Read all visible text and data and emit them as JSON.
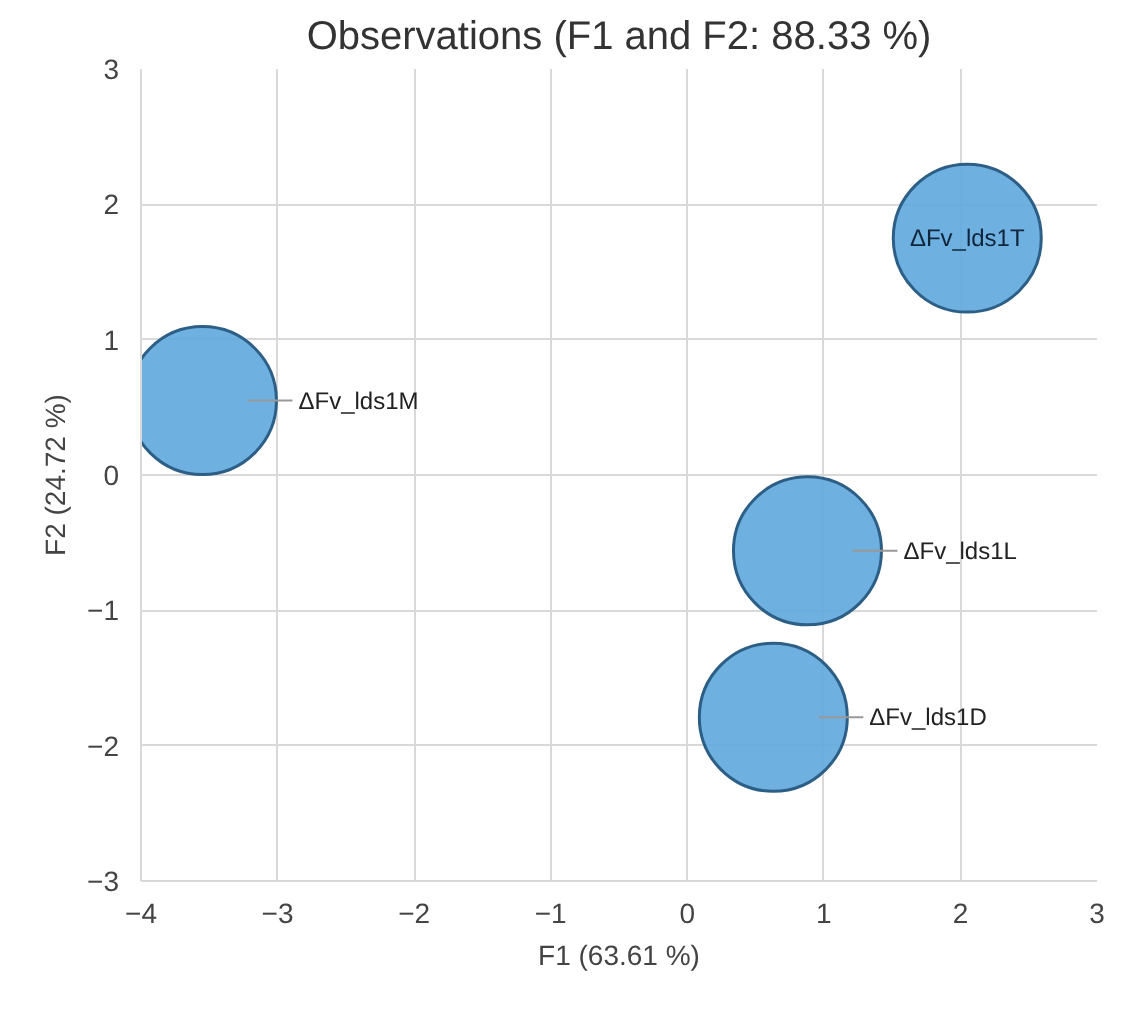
{
  "chart_data": {
    "type": "bubble",
    "title": "Observations (F1 and F2: 88.33 %)",
    "xlabel": "F1 (63.61 %)",
    "ylabel": "F2 (24.72 %)",
    "xlim": [
      -4,
      3
    ],
    "xticks": [
      -4,
      -3,
      -2,
      -1,
      0,
      1,
      2,
      3
    ],
    "ylim": [
      -3,
      3
    ],
    "yticks": [
      -3,
      -2,
      -1,
      0,
      1,
      2,
      3
    ],
    "grid": true,
    "series": [
      {
        "name": "ΔFv_lds1M",
        "color": "#62a9dd",
        "x": [
          -3.55
        ],
        "values": [
          0.55
        ],
        "sizes": [
          1
        ]
      },
      {
        "name": "ΔFv_lds1T",
        "color": "#62a9dd",
        "x": [
          2.05
        ],
        "values": [
          1.75
        ],
        "sizes": [
          1
        ]
      },
      {
        "name": "ΔFv_lds1L",
        "color": "#62a9dd",
        "x": [
          0.88
        ],
        "values": [
          -0.56
        ],
        "sizes": [
          1
        ]
      },
      {
        "name": "ΔFv_lds1D",
        "color": "#62a9dd",
        "x": [
          0.63
        ],
        "values": [
          -1.79
        ],
        "sizes": [
          1
        ]
      }
    ]
  }
}
